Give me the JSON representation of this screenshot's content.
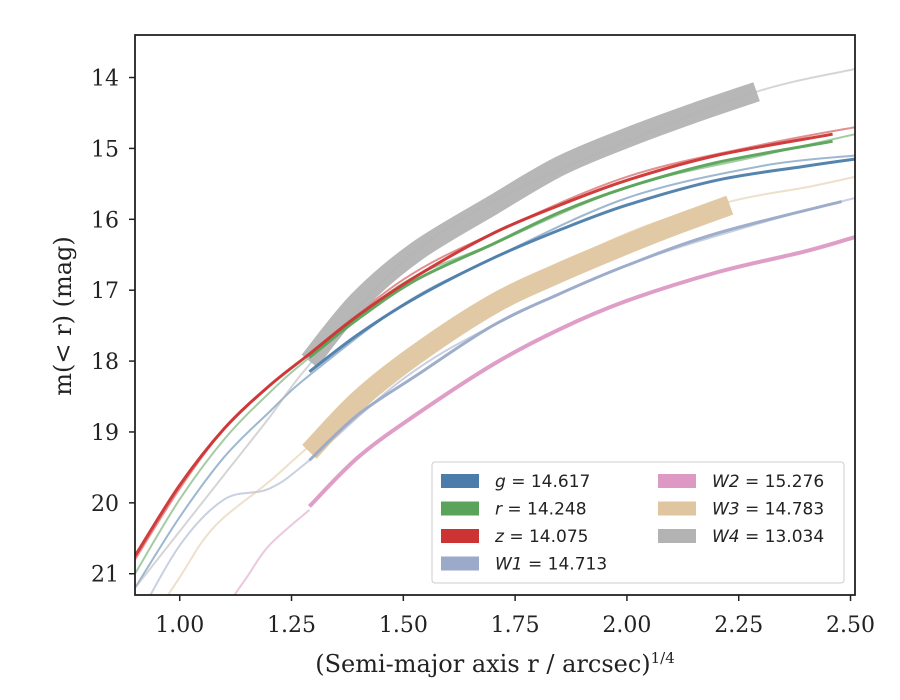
{
  "chart_data": {
    "type": "line",
    "xlabel": "(Semi-major axis r / arcsec)",
    "xlabel_exponent": "1/4",
    "ylabel": "m(< r) (mag)",
    "xlim": [
      0.9,
      2.51
    ],
    "ylim": [
      21.3,
      13.4
    ],
    "y_inverted": true,
    "xticks": [
      "1.00",
      "1.25",
      "1.50",
      "1.75",
      "2.00",
      "2.25",
      "2.50"
    ],
    "xtick_values": [
      1.0,
      1.25,
      1.5,
      1.75,
      2.0,
      2.25,
      2.5
    ],
    "yticks": [
      "14",
      "15",
      "16",
      "17",
      "18",
      "19",
      "20",
      "21"
    ],
    "ytick_values": [
      14,
      15,
      16,
      17,
      18,
      19,
      20,
      21
    ],
    "grid": false,
    "legend_position": "lower-right",
    "series": [
      {
        "name": "g = 14.617",
        "label_var": "g",
        "label_val": "14.617",
        "color": "#4c7daa",
        "faint": [
          [
            0.9,
            21.2
          ],
          [
            1.0,
            20.2
          ],
          [
            1.1,
            19.35
          ],
          [
            1.2,
            18.72
          ],
          [
            1.29,
            18.2
          ],
          [
            1.5,
            17.2
          ],
          [
            1.7,
            16.55
          ],
          [
            2.0,
            15.7
          ],
          [
            2.3,
            15.25
          ],
          [
            2.51,
            15.1
          ]
        ],
        "band": [
          [
            1.29,
            18.15
          ],
          [
            1.4,
            17.62
          ],
          [
            1.53,
            17.1
          ],
          [
            1.7,
            16.55
          ],
          [
            1.85,
            16.15
          ],
          [
            2.0,
            15.8
          ],
          [
            2.2,
            15.45
          ],
          [
            2.4,
            15.25
          ],
          [
            2.51,
            15.15
          ]
        ],
        "band_width": 3
      },
      {
        "name": "r = 14.248",
        "label_var": "r",
        "label_val": "14.248",
        "color": "#5aa35a",
        "faint": [
          [
            0.9,
            21.0
          ],
          [
            1.0,
            19.95
          ],
          [
            1.1,
            19.1
          ],
          [
            1.2,
            18.45
          ],
          [
            1.29,
            17.95
          ],
          [
            1.5,
            16.9
          ],
          [
            1.7,
            16.35
          ],
          [
            2.0,
            15.55
          ],
          [
            2.3,
            15.1
          ],
          [
            2.51,
            14.8
          ]
        ],
        "band": [
          [
            1.29,
            17.95
          ],
          [
            1.4,
            17.4
          ],
          [
            1.53,
            16.85
          ],
          [
            1.7,
            16.35
          ],
          [
            1.85,
            15.9
          ],
          [
            2.0,
            15.55
          ],
          [
            2.2,
            15.2
          ],
          [
            2.46,
            14.9
          ]
        ],
        "band_width": 3
      },
      {
        "name": "z = 14.075",
        "label_var": "z",
        "label_val": "14.075",
        "color": "#cc3333",
        "faint": [
          [
            0.9,
            20.8
          ],
          [
            1.0,
            19.8
          ],
          [
            1.1,
            18.95
          ],
          [
            1.2,
            18.35
          ],
          [
            1.29,
            17.9
          ],
          [
            1.5,
            16.85
          ],
          [
            1.7,
            16.2
          ],
          [
            2.0,
            15.4
          ],
          [
            2.3,
            14.95
          ],
          [
            2.51,
            14.7
          ]
        ],
        "band": [
          [
            0.9,
            20.75
          ],
          [
            1.0,
            19.75
          ],
          [
            1.1,
            18.95
          ],
          [
            1.2,
            18.35
          ],
          [
            1.29,
            17.9
          ],
          [
            1.4,
            17.35
          ],
          [
            1.53,
            16.8
          ],
          [
            1.7,
            16.2
          ],
          [
            1.85,
            15.8
          ],
          [
            2.0,
            15.45
          ],
          [
            2.2,
            15.1
          ],
          [
            2.46,
            14.8
          ]
        ],
        "band_width": 3
      },
      {
        "name": "W1 = 14.713",
        "label_var": "W1",
        "label_val": "14.713",
        "color": "#9aaac8",
        "faint": [
          [
            0.9,
            21.7
          ],
          [
            1.0,
            20.6
          ],
          [
            1.1,
            19.95
          ],
          [
            1.2,
            19.8
          ],
          [
            1.29,
            19.4
          ],
          [
            1.5,
            18.25
          ],
          [
            1.7,
            17.5
          ],
          [
            2.0,
            16.65
          ],
          [
            2.3,
            16.05
          ],
          [
            2.51,
            15.7
          ]
        ],
        "band": [
          [
            1.29,
            19.4
          ],
          [
            1.4,
            18.75
          ],
          [
            1.53,
            18.2
          ],
          [
            1.7,
            17.5
          ],
          [
            1.85,
            17.05
          ],
          [
            2.0,
            16.65
          ],
          [
            2.2,
            16.2
          ],
          [
            2.48,
            15.75
          ]
        ],
        "band_width": 3
      },
      {
        "name": "W2 = 15.276",
        "label_var": "W2",
        "label_val": "15.276",
        "color": "#dd99c4",
        "faint": [
          [
            1.1,
            21.5
          ],
          [
            1.15,
            21.05
          ],
          [
            1.2,
            20.6
          ],
          [
            1.29,
            20.1
          ]
        ],
        "band": [
          [
            1.29,
            20.05
          ],
          [
            1.4,
            19.35
          ],
          [
            1.53,
            18.75
          ],
          [
            1.7,
            18.05
          ],
          [
            1.85,
            17.55
          ],
          [
            2.0,
            17.15
          ],
          [
            2.2,
            16.75
          ],
          [
            2.4,
            16.45
          ],
          [
            2.51,
            16.25
          ]
        ],
        "band_width": 4
      },
      {
        "name": "W3 = 14.783",
        "label_var": "W3",
        "label_val": "14.783",
        "color": "#e0c6a0",
        "faint": [
          [
            0.9,
            22.0
          ],
          [
            1.0,
            21.05
          ],
          [
            1.05,
            20.55
          ],
          [
            1.1,
            20.2
          ],
          [
            1.2,
            19.7
          ],
          [
            1.29,
            19.2
          ],
          [
            1.4,
            18.65
          ],
          [
            1.53,
            17.95
          ],
          [
            1.7,
            17.15
          ],
          [
            2.0,
            16.2
          ],
          [
            2.23,
            15.75
          ],
          [
            2.4,
            15.55
          ],
          [
            2.51,
            15.4
          ]
        ],
        "band": [
          [
            1.29,
            19.28
          ],
          [
            1.4,
            18.55
          ],
          [
            1.53,
            17.9
          ],
          [
            1.7,
            17.2
          ],
          [
            1.85,
            16.75
          ],
          [
            2.0,
            16.35
          ],
          [
            2.1,
            16.1
          ],
          [
            2.23,
            15.8
          ]
        ],
        "band_width": 20
      },
      {
        "name": "W4 = 13.034",
        "label_var": "W4",
        "label_val": "13.034",
        "color": "#b3b3b3",
        "faint": [
          [
            0.9,
            21.2
          ],
          [
            1.0,
            20.4
          ],
          [
            1.1,
            19.6
          ],
          [
            1.2,
            18.8
          ],
          [
            1.29,
            18.05
          ],
          [
            1.5,
            16.6
          ],
          [
            1.7,
            15.75
          ],
          [
            2.0,
            14.9
          ],
          [
            2.29,
            14.2
          ],
          [
            2.51,
            13.88
          ]
        ],
        "band": [
          [
            1.29,
            18.0
          ],
          [
            1.4,
            17.15
          ],
          [
            1.53,
            16.45
          ],
          [
            1.7,
            15.8
          ],
          [
            1.85,
            15.25
          ],
          [
            2.0,
            14.85
          ],
          [
            2.15,
            14.5
          ],
          [
            2.29,
            14.2
          ]
        ],
        "band_width": 20
      }
    ]
  }
}
